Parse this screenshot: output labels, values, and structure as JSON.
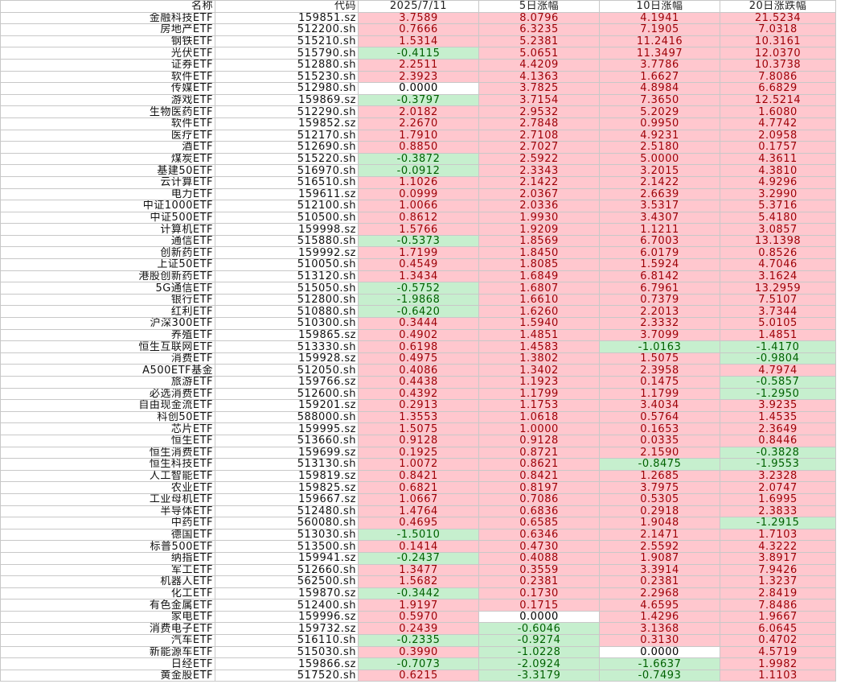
{
  "colors": {
    "positive_fill": "#ffc7ce",
    "positive_text": "#9c0006",
    "negative_fill": "#c6efce",
    "negative_text": "#006100"
  },
  "headers": [
    "名称",
    "代码",
    "2025/7/11",
    "5日涨幅",
    "10日涨幅",
    "20日涨跌幅"
  ],
  "rows": [
    {
      "name": "金融科技ETF",
      "code": "159851.sz",
      "d1": "3.7589",
      "d5": "8.0796",
      "d10": "4.1941",
      "d20": "21.5234"
    },
    {
      "name": "房地产ETF",
      "code": "512200.sh",
      "d1": "0.7666",
      "d5": "6.3235",
      "d10": "7.1905",
      "d20": "7.0318"
    },
    {
      "name": "钢铁ETF",
      "code": "515210.sh",
      "d1": "1.5314",
      "d5": "5.2381",
      "d10": "11.2416",
      "d20": "10.3161"
    },
    {
      "name": "光伏ETF",
      "code": "515790.sh",
      "d1": "-0.4115",
      "d5": "5.0651",
      "d10": "11.3497",
      "d20": "12.0370"
    },
    {
      "name": "证券ETF",
      "code": "512880.sh",
      "d1": "2.2511",
      "d5": "4.4209",
      "d10": "3.7786",
      "d20": "10.3738"
    },
    {
      "name": "软件ETF",
      "code": "515230.sh",
      "d1": "2.3923",
      "d5": "4.1363",
      "d10": "1.6627",
      "d20": "7.8086"
    },
    {
      "name": "传媒ETF",
      "code": "512980.sh",
      "d1": "0.0000",
      "d5": "3.7825",
      "d10": "4.8984",
      "d20": "6.6829"
    },
    {
      "name": "游戏ETF",
      "code": "159869.sz",
      "d1": "-0.3797",
      "d5": "3.7154",
      "d10": "7.3650",
      "d20": "12.5214"
    },
    {
      "name": "生物医药ETF",
      "code": "512290.sh",
      "d1": "2.0182",
      "d5": "2.9532",
      "d10": "5.2029",
      "d20": "1.6080"
    },
    {
      "name": "软件ETF",
      "code": "159852.sz",
      "d1": "2.2670",
      "d5": "2.7848",
      "d10": "0.9950",
      "d20": "4.7742"
    },
    {
      "name": "医疗ETF",
      "code": "512170.sh",
      "d1": "1.7910",
      "d5": "2.7108",
      "d10": "4.9231",
      "d20": "2.0958"
    },
    {
      "name": "酒ETF",
      "code": "512690.sh",
      "d1": "0.8850",
      "d5": "2.7027",
      "d10": "2.5180",
      "d20": "0.1757"
    },
    {
      "name": "煤炭ETF",
      "code": "515220.sh",
      "d1": "-0.3872",
      "d5": "2.5922",
      "d10": "5.0000",
      "d20": "4.3611"
    },
    {
      "name": "基建50ETF",
      "code": "516970.sh",
      "d1": "-0.0912",
      "d5": "2.3343",
      "d10": "3.2015",
      "d20": "4.3810"
    },
    {
      "name": "云计算ETF",
      "code": "516510.sh",
      "d1": "1.1026",
      "d5": "2.1422",
      "d10": "2.1422",
      "d20": "4.9296"
    },
    {
      "name": "电力ETF",
      "code": "159611.sz",
      "d1": "0.0999",
      "d5": "2.0367",
      "d10": "2.6639",
      "d20": "3.2990"
    },
    {
      "name": "中证1000ETF",
      "code": "512100.sh",
      "d1": "1.0066",
      "d5": "2.0336",
      "d10": "3.5317",
      "d20": "5.3716"
    },
    {
      "name": "中证500ETF",
      "code": "510500.sh",
      "d1": "0.8612",
      "d5": "1.9930",
      "d10": "3.4307",
      "d20": "5.4180"
    },
    {
      "name": "计算机ETF",
      "code": "159998.sz",
      "d1": "1.5766",
      "d5": "1.9209",
      "d10": "1.1211",
      "d20": "3.0857"
    },
    {
      "name": "通信ETF",
      "code": "515880.sh",
      "d1": "-0.5373",
      "d5": "1.8569",
      "d10": "6.7003",
      "d20": "13.1398"
    },
    {
      "name": "创新药ETF",
      "code": "159992.sz",
      "d1": "1.7199",
      "d5": "1.8450",
      "d10": "6.0179",
      "d20": "0.8526"
    },
    {
      "name": "上证50ETF",
      "code": "510050.sh",
      "d1": "0.4549",
      "d5": "1.8085",
      "d10": "1.5924",
      "d20": "4.7046"
    },
    {
      "name": "港股创新药ETF",
      "code": "513120.sh",
      "d1": "1.3434",
      "d5": "1.6849",
      "d10": "6.8142",
      "d20": "3.1624"
    },
    {
      "name": "5G通信ETF",
      "code": "515050.sh",
      "d1": "-0.5752",
      "d5": "1.6807",
      "d10": "6.7961",
      "d20": "13.2959"
    },
    {
      "name": "银行ETF",
      "code": "512800.sh",
      "d1": "-1.9868",
      "d5": "1.6610",
      "d10": "0.7379",
      "d20": "7.5107"
    },
    {
      "name": "红利ETF",
      "code": "510880.sh",
      "d1": "-0.6420",
      "d5": "1.6260",
      "d10": "2.2013",
      "d20": "3.7344"
    },
    {
      "name": "沪深300ETF",
      "code": "510300.sh",
      "d1": "0.3444",
      "d5": "1.5940",
      "d10": "2.3332",
      "d20": "5.0105"
    },
    {
      "name": "养殖ETF",
      "code": "159865.sz",
      "d1": "0.4902",
      "d5": "1.4851",
      "d10": "3.7099",
      "d20": "1.4851"
    },
    {
      "name": "恒生互联网ETF",
      "code": "513330.sh",
      "d1": "0.6198",
      "d5": "1.4583",
      "d10": "-1.0163",
      "d20": "-1.4170"
    },
    {
      "name": "消费ETF",
      "code": "159928.sz",
      "d1": "0.4975",
      "d5": "1.3802",
      "d10": "1.5075",
      "d20": "-0.9804"
    },
    {
      "name": "A500ETF基金",
      "code": "512050.sh",
      "d1": "0.4086",
      "d5": "1.3402",
      "d10": "2.3958",
      "d20": "4.7974"
    },
    {
      "name": "旅游ETF",
      "code": "159766.sz",
      "d1": "0.4438",
      "d5": "1.1923",
      "d10": "0.1475",
      "d20": "-0.5857"
    },
    {
      "name": "必选消费ETF",
      "code": "512600.sh",
      "d1": "0.4392",
      "d5": "1.1799",
      "d10": "1.1799",
      "d20": "-1.2950"
    },
    {
      "name": "自由现金流ETF",
      "code": "159201.sz",
      "d1": "0.2913",
      "d5": "1.1753",
      "d10": "3.4034",
      "d20": "3.9235"
    },
    {
      "name": "科创50ETF",
      "code": "588000.sh",
      "d1": "1.3553",
      "d5": "1.0618",
      "d10": "0.5764",
      "d20": "1.4535"
    },
    {
      "name": "芯片ETF",
      "code": "159995.sz",
      "d1": "1.5075",
      "d5": "1.0000",
      "d10": "0.1653",
      "d20": "2.3649"
    },
    {
      "name": "恒生ETF",
      "code": "513660.sh",
      "d1": "0.9128",
      "d5": "0.9128",
      "d10": "0.0335",
      "d20": "0.8446"
    },
    {
      "name": "恒生消费ETF",
      "code": "159699.sz",
      "d1": "0.1925",
      "d5": "0.8721",
      "d10": "2.1590",
      "d20": "-0.3828"
    },
    {
      "name": "恒生科技ETF",
      "code": "513130.sh",
      "d1": "1.0072",
      "d5": "0.8621",
      "d10": "-0.8475",
      "d20": "-1.9553"
    },
    {
      "name": "人工智能ETF",
      "code": "159819.sz",
      "d1": "0.8421",
      "d5": "0.8421",
      "d10": "1.2685",
      "d20": "3.2328"
    },
    {
      "name": "农业ETF",
      "code": "159825.sz",
      "d1": "0.6821",
      "d5": "0.8197",
      "d10": "3.7975",
      "d20": "2.0747"
    },
    {
      "name": "工业母机ETF",
      "code": "159667.sz",
      "d1": "1.0667",
      "d5": "0.7086",
      "d10": "0.5305",
      "d20": "1.6995"
    },
    {
      "name": "半导体ETF",
      "code": "512480.sh",
      "d1": "1.4764",
      "d5": "0.6836",
      "d10": "0.2918",
      "d20": "2.3833"
    },
    {
      "name": "中药ETF",
      "code": "560080.sh",
      "d1": "0.4695",
      "d5": "0.6585",
      "d10": "1.9048",
      "d20": "-1.2915"
    },
    {
      "name": "德国ETF",
      "code": "513030.sh",
      "d1": "-1.5010",
      "d5": "0.6346",
      "d10": "2.1471",
      "d20": "1.7103"
    },
    {
      "name": "标普500ETF",
      "code": "513500.sh",
      "d1": "0.1414",
      "d5": "0.4730",
      "d10": "2.5592",
      "d20": "4.3222"
    },
    {
      "name": "纳指ETF",
      "code": "159941.sz",
      "d1": "-0.2437",
      "d5": "0.4088",
      "d10": "1.9087",
      "d20": "3.8917"
    },
    {
      "name": "军工ETF",
      "code": "512660.sh",
      "d1": "1.3477",
      "d5": "0.3559",
      "d10": "3.3914",
      "d20": "7.9426"
    },
    {
      "name": "机器人ETF",
      "code": "562500.sh",
      "d1": "1.5682",
      "d5": "0.2381",
      "d10": "0.2381",
      "d20": "1.3237"
    },
    {
      "name": "化工ETF",
      "code": "159870.sz",
      "d1": "-0.3442",
      "d5": "0.1730",
      "d10": "2.2968",
      "d20": "2.8419"
    },
    {
      "name": "有色金属ETF",
      "code": "512400.sh",
      "d1": "1.9197",
      "d5": "0.1715",
      "d10": "4.6595",
      "d20": "7.8486"
    },
    {
      "name": "家电ETF",
      "code": "159996.sz",
      "d1": "0.5970",
      "d5": "0.0000",
      "d10": "1.4296",
      "d20": "1.9667"
    },
    {
      "name": "消费电子ETF",
      "code": "159732.sz",
      "d1": "0.2439",
      "d5": "-0.6046",
      "d10": "3.1368",
      "d20": "6.0645"
    },
    {
      "name": "汽车ETF",
      "code": "516110.sh",
      "d1": "-0.2335",
      "d5": "-0.9274",
      "d10": "0.3130",
      "d20": "0.4702"
    },
    {
      "name": "新能源车ETF",
      "code": "515030.sh",
      "d1": "0.3990",
      "d5": "-1.0228",
      "d10": "0.0000",
      "d20": "4.5719"
    },
    {
      "name": "日经ETF",
      "code": "159866.sz",
      "d1": "-0.7073",
      "d5": "-2.0924",
      "d10": "-1.6637",
      "d20": "1.9982"
    },
    {
      "name": "黄金股ETF",
      "code": "517520.sh",
      "d1": "0.6215",
      "d5": "-3.3179",
      "d10": "-0.7493",
      "d20": "1.1103"
    }
  ]
}
